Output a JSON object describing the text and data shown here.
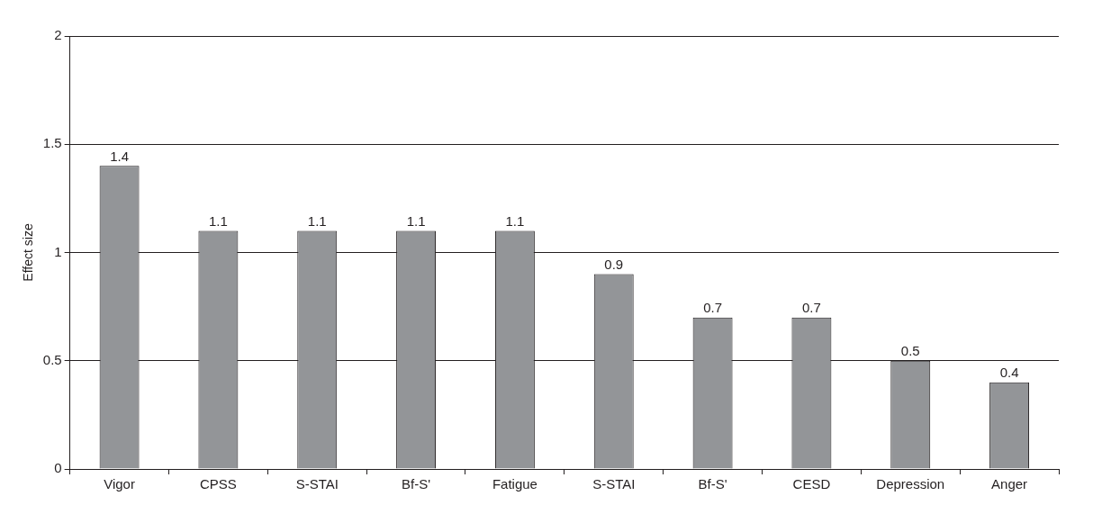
{
  "chart_data": {
    "type": "bar",
    "ylabel": "Effect size",
    "categories": [
      "Vigor",
      "CPSS",
      "S-STAI",
      "Bf-S'",
      "Fatigue",
      "S-STAI",
      "Bf-S'",
      "CESD",
      "Depression",
      "Anger"
    ],
    "values": [
      1.4,
      1.1,
      1.1,
      1.1,
      1.1,
      0.9,
      0.7,
      0.7,
      0.5,
      0.4
    ],
    "color": "#939598",
    "ylim": [
      0,
      2
    ],
    "yticks": [
      0,
      0.5,
      1,
      1.5,
      2
    ],
    "grid": "y",
    "legend": false,
    "data_labels": true
  }
}
